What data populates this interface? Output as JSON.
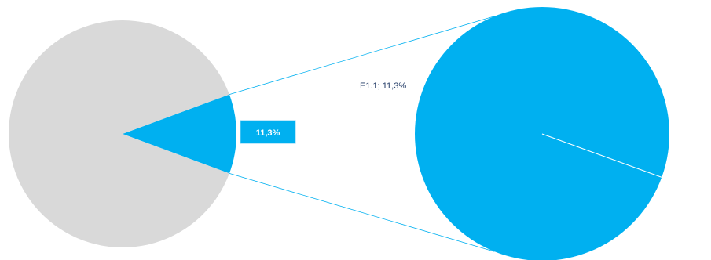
{
  "chart_data": {
    "type": "pie",
    "subtype": "pie-of-pie",
    "main_pie": {
      "slices": [
        {
          "name": "",
          "value": 88.7,
          "color": "#d9d9d9"
        },
        {
          "name": "",
          "value": 11.3,
          "color": "#00b0f0",
          "label": "11,3%",
          "exploded_to_secondary": true
        }
      ]
    },
    "secondary_pie": {
      "slices": [
        {
          "name": "E1.1",
          "value": 11.3,
          "color": "#00b0f0",
          "label": "E1.1; 11,3%"
        }
      ]
    },
    "connector_color": "#00b0f0",
    "legend": "none"
  }
}
